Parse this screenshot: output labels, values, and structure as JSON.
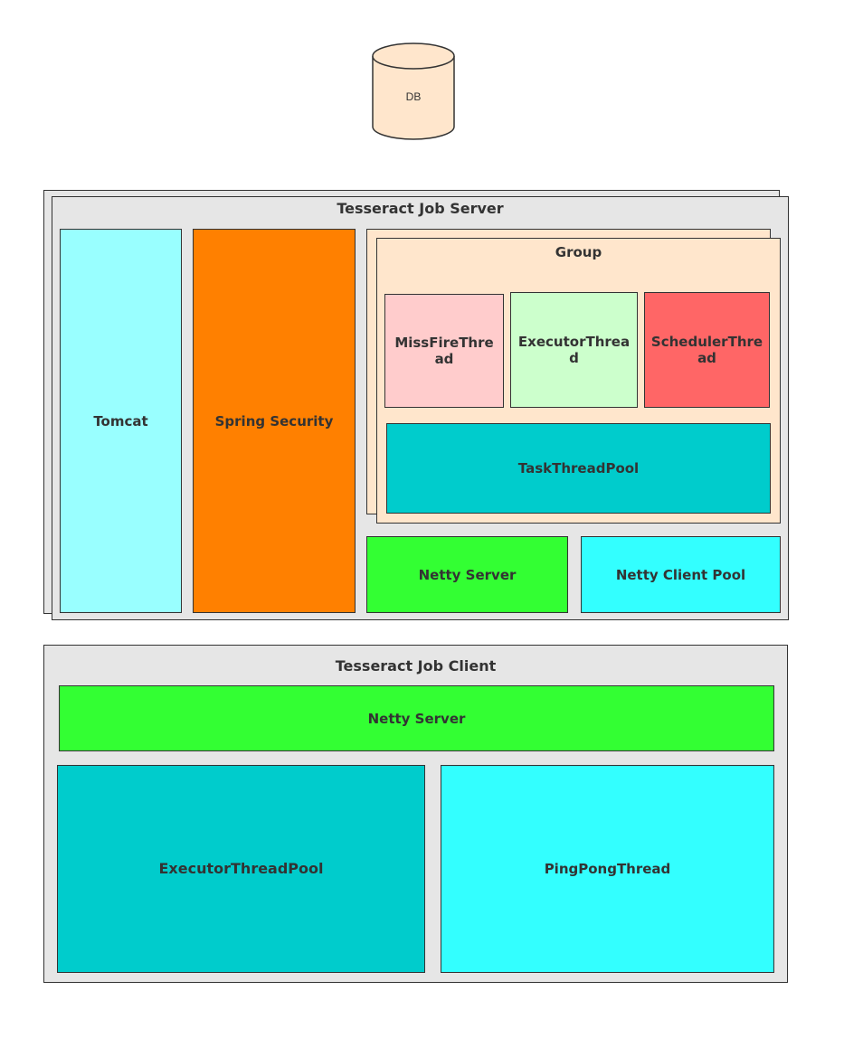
{
  "db": {
    "label": "DB",
    "color": "#ffe6cc"
  },
  "server": {
    "title": "Tesseract Job Server",
    "tomcat": {
      "label": "Tomcat",
      "color": "#99ffff"
    },
    "spring_security": {
      "label": "Spring Security",
      "color": "#ff8000"
    },
    "group": {
      "title": "Group",
      "missfire": {
        "label": "MissFireThread",
        "color": "#ffcccc"
      },
      "executor": {
        "label": "ExecutorThread",
        "color": "#ccffcc"
      },
      "scheduler": {
        "label": "SchedulerThread",
        "color": "#ff6666"
      },
      "task_pool": {
        "label": "TaskThreadPool",
        "color": "#00cccc"
      }
    },
    "netty_server": {
      "label": "Netty Server",
      "color": "#33ff33"
    },
    "netty_client_pool": {
      "label": "Netty Client Pool",
      "color": "#33ffff"
    }
  },
  "client": {
    "title": "Tesseract Job Client",
    "netty_server": {
      "label": "Netty Server",
      "color": "#33ff33"
    },
    "executor_pool": {
      "label": "ExecutorThreadPool",
      "color": "#00cccc"
    },
    "pingpong": {
      "label": "PingPongThread",
      "color": "#33ffff"
    }
  }
}
